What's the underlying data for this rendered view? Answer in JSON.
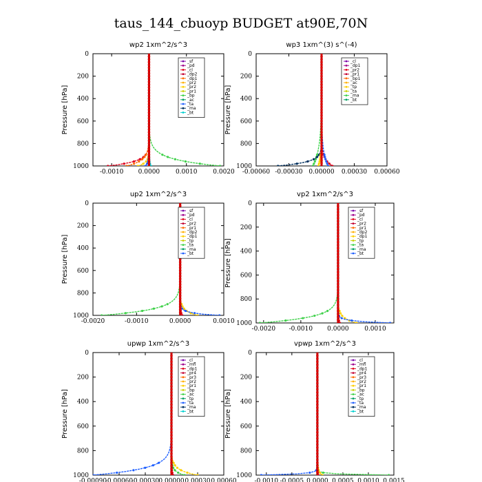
{
  "figure": {
    "suptitle": "taus_144_cbuoyp  BUDGET at90E,70N"
  },
  "chart_data": [
    {
      "type": "line",
      "title": "wp2   1xm^2/s^3",
      "ylabel": "Pressure [hPa]",
      "xlim": [
        -0.0015,
        0.002
      ],
      "ylim": [
        1000,
        0
      ],
      "yticks": [
        0,
        200,
        400,
        600,
        800,
        1000
      ],
      "xticks": [
        "-0.0010",
        "0.0000",
        "0.0010",
        "0.0020"
      ],
      "xtick_values": [
        -0.001,
        0.0,
        0.001,
        0.002
      ],
      "legend": [
        "_sf",
        "_pd",
        "_cl",
        "_dp2",
        "_dp1",
        "_pr2",
        "_pr2",
        "_pr1",
        "_bp",
        "_ac",
        "_ta",
        "_ma",
        "_bt"
      ],
      "legend_placement": "top-right",
      "series_shape": [
        {
          "name": "_pd",
          "color": "#7a00a8",
          "amp": 3e-05,
          "decay": 25
        },
        {
          "name": "_cl",
          "color": "#e0001b",
          "amp": -0.0011,
          "decay": 40
        },
        {
          "name": "_dp1",
          "color": "#ff6a00",
          "amp": -0.0006,
          "decay": 50
        },
        {
          "name": "_pr2",
          "color": "#ffd000",
          "amp": -0.0003,
          "decay": 30
        },
        {
          "name": "_ac",
          "color": "#3fd14a",
          "amp": 0.0019,
          "decay": 60
        },
        {
          "name": "_ta",
          "color": "#1f5fff",
          "amp": -0.0001,
          "decay": 30
        },
        {
          "name": "_bt",
          "color": "#00d0d0",
          "amp": 5e-05,
          "decay": 30
        }
      ]
    },
    {
      "type": "line",
      "title": "wp3   1xm^(3) s^(-4)",
      "ylabel": "Pressure [hPa]",
      "xlim": [
        -0.0006,
        0.0006
      ],
      "ylim": [
        1000,
        0
      ],
      "yticks": [
        0,
        200,
        400,
        600,
        800,
        1000
      ],
      "xticks": [
        "-0.00060",
        "-0.00030",
        "0.00000",
        "0.00030",
        "0.00060"
      ],
      "xtick_values": [
        -0.0006,
        -0.0003,
        0.0,
        0.0003,
        0.0006
      ],
      "legend": [
        "_cl",
        "_dp1",
        "_pr2",
        "_pr1",
        "_bp1",
        "_ac",
        "_tp",
        "_ta",
        "_ma",
        "_bt"
      ],
      "legend_placement": "top-right",
      "series_shape": [
        {
          "name": "_cl",
          "color": "#e0001b",
          "amp": 0.0001,
          "decay": 60
        },
        {
          "name": "_ac",
          "color": "#3fd14a",
          "amp": -8e-05,
          "decay": 150
        },
        {
          "name": "_tp",
          "color": "#1f5fff",
          "amp": 6e-05,
          "decay": 120
        },
        {
          "name": "_ta",
          "color": "#00305f",
          "amp": -0.0004,
          "decay": 35
        },
        {
          "name": "_pr1",
          "color": "#ffd000",
          "amp": -3e-05,
          "decay": 80
        }
      ]
    },
    {
      "type": "line",
      "title": "up2   1xm^2/s^3",
      "ylabel": "Pressure [hPa]",
      "xlim": [
        -0.002,
        0.001
      ],
      "ylim": [
        1000,
        0
      ],
      "yticks": [
        0,
        200,
        400,
        600,
        800,
        1000
      ],
      "xticks": [
        "-0.0020",
        "-0.0010",
        "0.0000",
        "0.0010"
      ],
      "xtick_values": [
        -0.002,
        -0.001,
        0.0,
        0.001
      ],
      "legend": [
        "_sf",
        "_pd",
        "_cl",
        "_pr2",
        "_pr1",
        "_dp2",
        "_dp1",
        "_tp",
        "_ta",
        "_ma",
        "_bt"
      ],
      "legend_placement": "top-right",
      "series_shape": [
        {
          "name": "_dp2",
          "color": "#3fd14a",
          "amp": -0.0018,
          "decay": 55
        },
        {
          "name": "_pr1",
          "color": "#ffd000",
          "amp": 0.0004,
          "decay": 40
        },
        {
          "name": "_ta",
          "color": "#1f5fff",
          "amp": 0.0009,
          "decay": 20
        },
        {
          "name": "_cl",
          "color": "#e0001b",
          "amp": 5e-05,
          "decay": 30
        }
      ]
    },
    {
      "type": "line",
      "title": "vp2   1xm^2/s^3",
      "ylabel": "Pressure [hPa]",
      "xlim": [
        -0.0022,
        0.0015
      ],
      "ylim": [
        1000,
        0
      ],
      "yticks": [
        0,
        200,
        400,
        600,
        800,
        1000
      ],
      "xticks": [
        "-0.0020",
        "-0.0010",
        "0.0000",
        "0.0010"
      ],
      "xtick_values": [
        -0.002,
        -0.001,
        0.0,
        0.001
      ],
      "legend": [
        "_sf",
        "_pd",
        "_cl",
        "_pr2",
        "_pr1",
        "_dp2",
        "_dp1",
        "_tp",
        "_ta",
        "_ma",
        "_bt"
      ],
      "legend_placement": "top-right",
      "series_shape": [
        {
          "name": "_dp2",
          "color": "#3fd14a",
          "amp": -0.0021,
          "decay": 50
        },
        {
          "name": "_pr1",
          "color": "#ffd000",
          "amp": 0.0005,
          "decay": 40
        },
        {
          "name": "_ta",
          "color": "#1f5fff",
          "amp": 0.0014,
          "decay": 15
        },
        {
          "name": "_cl",
          "color": "#e0001b",
          "amp": 5e-05,
          "decay": 30
        }
      ]
    },
    {
      "type": "line",
      "title": "upwp   1xm^2/s^3",
      "ylabel": "Pressure [hPa]",
      "xlim": [
        -0.0009,
        0.0006
      ],
      "ylim": [
        1000,
        0
      ],
      "yticks": [
        0,
        200,
        400,
        600,
        800,
        1000
      ],
      "xticks": [
        "-0.00090",
        "-0.00060",
        "-0.00030",
        "0.00000",
        "0.00030",
        "0.00060"
      ],
      "xtick_values": [
        -0.0009,
        -0.0006,
        -0.0003,
        0.0,
        0.0003,
        0.0006
      ],
      "legend": [
        "_cl",
        "_mfl",
        "_dp1",
        "_pr4",
        "_pr3",
        "_pr2",
        "_pr1",
        "_bp",
        "_ac",
        "_tp",
        "_ta",
        "_ma",
        "_bt"
      ],
      "legend_placement": "top-right",
      "series_shape": [
        {
          "name": "_ta",
          "color": "#1f5fff",
          "amp": -0.0009,
          "decay": 55
        },
        {
          "name": "_pr1",
          "color": "#ffd000",
          "amp": 0.0003,
          "decay": 40
        },
        {
          "name": "_ac",
          "color": "#3fd14a",
          "amp": 0.00015,
          "decay": 30
        },
        {
          "name": "_cl",
          "color": "#e0001b",
          "amp": 2e-05,
          "decay": 30
        }
      ]
    },
    {
      "type": "line",
      "title": "vpwp   1xm^2/s^3",
      "ylabel": "Pressure [hPa]",
      "xlim": [
        -0.0012,
        0.0015
      ],
      "ylim": [
        1000,
        0
      ],
      "yticks": [
        0,
        200,
        400,
        600,
        800,
        1000
      ],
      "xticks": [
        "-0.0010",
        "-0.0005",
        "0.0000",
        "0.0005",
        "0.0010",
        "0.0015"
      ],
      "xtick_values": [
        -0.001,
        -0.0005,
        0.0,
        0.0005,
        0.001,
        0.0015
      ],
      "legend": [
        "_cl",
        "_mfl",
        "_dp1",
        "_pr4",
        "_pr3",
        "_pr2",
        "_pr1",
        "_bp",
        "_ac",
        "_tp",
        "_ta",
        "_ma",
        "_bt"
      ],
      "legend_placement": "top-right",
      "series_shape": [
        {
          "name": "_ta",
          "color": "#1f5fff",
          "amp": -0.0011,
          "decay": 10
        },
        {
          "name": "_ac",
          "color": "#3fd14a",
          "amp": 0.0014,
          "decay": 8
        },
        {
          "name": "_pr1",
          "color": "#ffd000",
          "amp": 0.0001,
          "decay": 30
        },
        {
          "name": "_cl",
          "color": "#e0001b",
          "amp": 2e-05,
          "decay": 30
        }
      ]
    }
  ]
}
